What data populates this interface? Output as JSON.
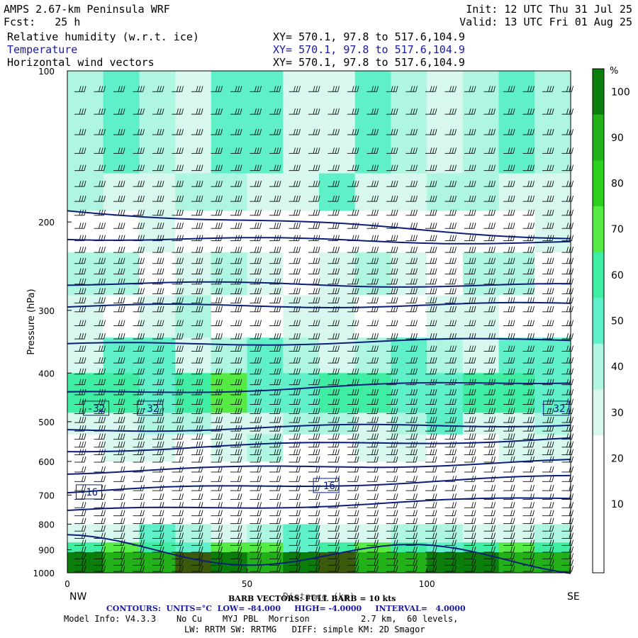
{
  "header": {
    "model_title": "AMPS 2.67-km Peninsula WRF",
    "init_label": "Init: 12 UTC Thu 31 Jul 25",
    "fcst_label": "Fcst:   25 h",
    "valid_label": "Valid: 13 UTC Fri 01 Aug 25",
    "fields": [
      {
        "name": "Relative humidity (w.r.t. ice)",
        "xy": "XY= 570.1, 97.8 to 517.6,104.9",
        "color": "#000000"
      },
      {
        "name": "Temperature",
        "xy": "XY= 570.1, 97.8 to 517.6,104.9",
        "color": "#1a1a9e"
      },
      {
        "name": "Horizontal wind vectors",
        "xy": "XY= 570.1, 97.8 to 517.6,104.9",
        "color": "#000000"
      }
    ]
  },
  "footer": {
    "barb_note": "BARB VECTORS: FULL BARB = 10 kts",
    "contours": "CONTOURS:  UNITS=°C  LOW= -84.000     HIGH= -4.0000     INTERVAL=   4.0000",
    "model_info": "Model Info: V4.3.3    No Cu    MYJ PBL  Morrison          2.7 km,  60 levels,",
    "physics": "LW: RRTM SW: RRTMG   DIFF: simple KM: 2D Smagor"
  },
  "chart_data": {
    "type": "heatmap",
    "description_fields": [
      "relative humidity (shaded)",
      "temperature (contours)",
      "wind barbs"
    ],
    "ylabel": "Pressure (hPa)",
    "xlabel": "Distance (km)",
    "x_ticks": [
      0,
      50,
      100
    ],
    "y_ticks": [
      100,
      200,
      300,
      400,
      500,
      600,
      700,
      800,
      900,
      1000
    ],
    "xlim": [
      0,
      140
    ],
    "ylim": [
      1000,
      100
    ],
    "y_scale": "log-pressure",
    "left_end_label": "NW",
    "right_end_label": "SE",
    "colorbar": {
      "unit": "%",
      "ticks": [
        10,
        20,
        30,
        40,
        50,
        60,
        70,
        80,
        90,
        100
      ],
      "colors": [
        "#ffffff",
        "#ffffff",
        "#ffffff",
        "#d8f7ee",
        "#aef5e2",
        "#5fefc9",
        "#40eea3",
        "#56ea45",
        "#2bd11c",
        "#23b11a",
        "#0a7d0a",
        "#3c5a0b"
      ]
    },
    "rh_bands": [
      {
        "p_top": 100,
        "p_bot": 160,
        "rh": 45
      },
      {
        "p_top": 160,
        "p_bot": 190,
        "rh": 40
      },
      {
        "p_top": 190,
        "p_bot": 230,
        "rh": 20
      },
      {
        "p_top": 230,
        "p_bot": 280,
        "rh": 35
      },
      {
        "p_top": 280,
        "p_bot": 340,
        "rh": 30
      },
      {
        "p_top": 340,
        "p_bot": 400,
        "rh": 45
      },
      {
        "p_top": 400,
        "p_bot": 480,
        "rh": 60
      },
      {
        "p_top": 480,
        "p_bot": 530,
        "rh": 40
      },
      {
        "p_top": 530,
        "p_bot": 600,
        "rh": 30
      },
      {
        "p_top": 600,
        "p_bot": 800,
        "rh": 10
      },
      {
        "p_top": 800,
        "p_bot": 870,
        "rh": 40
      },
      {
        "p_top": 870,
        "p_bot": 910,
        "rh": 65
      },
      {
        "p_top": 910,
        "p_bot": 1000,
        "rh": 100
      }
    ],
    "temperature_contours": [
      {
        "t": -52,
        "p_left": 190,
        "p_right": 215
      },
      {
        "t": -48,
        "p_left": 215,
        "p_right": 220
      },
      {
        "t": -44,
        "p_left": 265,
        "p_right": 268
      },
      {
        "t": -40,
        "p_left": 295,
        "p_right": 292
      },
      {
        "t": -36,
        "p_left": 352,
        "p_right": 343
      },
      {
        "t": -32,
        "p_left": 440,
        "p_right": 415
      },
      {
        "t": -28,
        "p_left": 520,
        "p_right": 505
      },
      {
        "t": -24,
        "p_left": 570,
        "p_right": 540
      },
      {
        "t": -20,
        "p_left": 630,
        "p_right": 600
      },
      {
        "t": -16,
        "p_left": 690,
        "p_right": 645
      },
      {
        "t": -12,
        "p_left": 755,
        "p_right": 710
      },
      {
        "t": -8,
        "p_left": 890,
        "p_right": 950
      }
    ],
    "contour_labels": [
      {
        "text": "-32",
        "x_km": 8,
        "p": 470
      },
      {
        "text": "-32",
        "x_km": 23,
        "p": 470
      },
      {
        "text": "-32",
        "x_km": 136,
        "p": 470
      },
      {
        "text": "-16",
        "x_km": 6,
        "p": 690
      },
      {
        "text": "-16",
        "x_km": 72,
        "p": 670
      }
    ]
  }
}
